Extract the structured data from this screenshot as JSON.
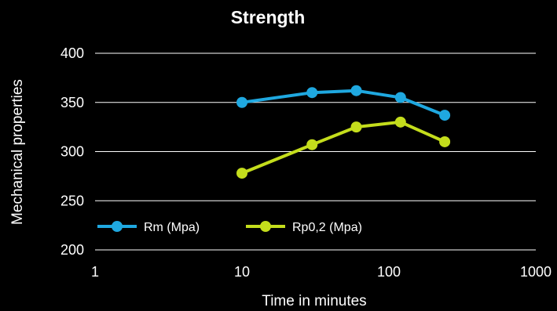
{
  "chart_data": {
    "type": "line",
    "title": "Strength",
    "xlabel": "Time in minutes",
    "ylabel": "Mechanical properties",
    "x_scale": "log",
    "xlim": [
      1,
      1000
    ],
    "ylim": [
      200,
      400
    ],
    "x_ticks": [
      "1",
      "10",
      "100",
      "1000"
    ],
    "y_ticks": [
      "200",
      "250",
      "300",
      "350",
      "400"
    ],
    "grid": "horizontal",
    "legend_position": "bottom-left",
    "background": "#000000",
    "series": [
      {
        "name": "Rm (Mpa)",
        "color": "#1fa8e0",
        "x": [
          10,
          30,
          60,
          120,
          240
        ],
        "y": [
          350,
          360,
          362,
          355,
          337
        ]
      },
      {
        "name": "Rp0,2 (Mpa)",
        "color": "#c4dd1c",
        "x": [
          10,
          30,
          60,
          120,
          240
        ],
        "y": [
          278,
          307,
          325,
          330,
          310
        ]
      }
    ]
  }
}
